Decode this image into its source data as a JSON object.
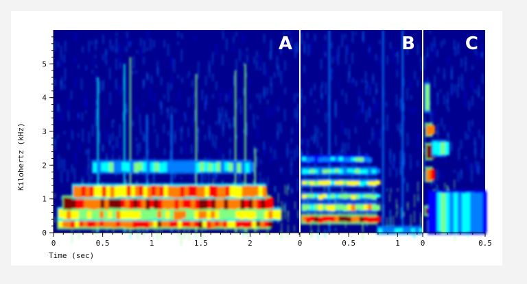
{
  "chart_data": {
    "type": "heatmap",
    "ylabel": "Kilohertz (kHz)",
    "xlabel": "Time (sec)",
    "ylim": [
      0,
      6
    ],
    "y_ticks": [
      "0",
      "1",
      "2",
      "3",
      "4",
      "5"
    ],
    "colormap": [
      "#00007f",
      "#0000ff",
      "#0080ff",
      "#00ffff",
      "#80ff80",
      "#ffff00",
      "#ff8000",
      "#ff0000",
      "#7f0000"
    ],
    "panels": [
      {
        "label": "A",
        "xlim": [
          0,
          2.5
        ],
        "x_ticks": [
          "0",
          "0.5",
          "1",
          "1.5",
          "2"
        ],
        "x_tick_values": [
          0,
          0.5,
          1,
          1.5,
          2
        ],
        "bands": [
          {
            "y0": 0.15,
            "y1": 0.4,
            "t0": 0.05,
            "t1": 2.2,
            "intensity": 0.8
          },
          {
            "y0": 0.4,
            "y1": 0.7,
            "t0": 0.05,
            "t1": 2.3,
            "intensity": 0.6
          },
          {
            "y0": 0.7,
            "y1": 1.05,
            "t0": 0.1,
            "t1": 2.2,
            "intensity": 0.85
          },
          {
            "y0": 1.05,
            "y1": 1.4,
            "t0": 0.2,
            "t1": 2.15,
            "intensity": 0.75
          },
          {
            "y0": 1.8,
            "y1": 2.1,
            "t0": 0.4,
            "t1": 2.0,
            "intensity": 0.35
          }
        ],
        "streaks": [
          {
            "t": 0.78,
            "y1": 5.2,
            "intensity": 0.5
          },
          {
            "t": 0.72,
            "y1": 5.0,
            "intensity": 0.4
          },
          {
            "t": 1.45,
            "y1": 4.7,
            "intensity": 0.45
          },
          {
            "t": 1.85,
            "y1": 4.8,
            "intensity": 0.5
          },
          {
            "t": 1.95,
            "y1": 5.0,
            "intensity": 0.55
          },
          {
            "t": 2.05,
            "y1": 2.5,
            "intensity": 0.5
          },
          {
            "t": 0.45,
            "y1": 4.6,
            "intensity": 0.35
          },
          {
            "t": 0.95,
            "y1": 3.5,
            "intensity": 0.3
          },
          {
            "t": 1.2,
            "y1": 3.5,
            "intensity": 0.3
          }
        ]
      },
      {
        "label": "B",
        "xlim": [
          0,
          1.25
        ],
        "x_ticks": [
          "0",
          "0.5",
          "1"
        ],
        "x_tick_values": [
          0,
          0.5,
          1
        ],
        "bands": [
          {
            "y0": 0.3,
            "y1": 0.5,
            "t0": 0.02,
            "t1": 0.78,
            "intensity": 0.9
          },
          {
            "y0": 0.65,
            "y1": 0.85,
            "t0": 0.02,
            "t1": 0.78,
            "intensity": 0.55
          },
          {
            "y0": 1.0,
            "y1": 1.15,
            "t0": 0.02,
            "t1": 0.78,
            "intensity": 0.5
          },
          {
            "y0": 1.4,
            "y1": 1.55,
            "t0": 0.02,
            "t1": 0.78,
            "intensity": 0.55
          },
          {
            "y0": 1.75,
            "y1": 1.9,
            "t0": 0.02,
            "t1": 0.78,
            "intensity": 0.4
          },
          {
            "y0": 2.1,
            "y1": 2.25,
            "t0": 0.02,
            "t1": 0.7,
            "intensity": 0.3
          },
          {
            "y0": 0.0,
            "y1": 0.15,
            "t0": 0.8,
            "t1": 1.25,
            "intensity": 0.35
          }
        ],
        "streaks": [
          {
            "t": 0.3,
            "y1": 6.0,
            "intensity": 0.3
          },
          {
            "t": 0.85,
            "y1": 6.0,
            "intensity": 0.25
          },
          {
            "t": 1.05,
            "y1": 6.0,
            "intensity": 0.3
          }
        ]
      },
      {
        "label": "C",
        "xlim": [
          0,
          0.5
        ],
        "x_ticks": [
          "0",
          "0.5"
        ],
        "x_tick_values": [
          0,
          0.5
        ],
        "bands": [
          {
            "y0": 0.55,
            "y1": 0.75,
            "t0": 0.02,
            "t1": 0.05,
            "intensity": 0.85
          },
          {
            "y0": 1.55,
            "y1": 1.9,
            "t0": 0.03,
            "t1": 0.07,
            "intensity": 0.85
          },
          {
            "y0": 2.2,
            "y1": 2.6,
            "t0": 0.03,
            "t1": 0.07,
            "intensity": 0.9
          },
          {
            "y0": 2.9,
            "y1": 3.2,
            "t0": 0.03,
            "t1": 0.07,
            "intensity": 0.8
          },
          {
            "y0": 3.6,
            "y1": 4.4,
            "t0": 0.02,
            "t1": 0.05,
            "intensity": 0.5
          },
          {
            "y0": 2.3,
            "y1": 2.7,
            "t0": 0.08,
            "t1": 0.18,
            "intensity": 0.4
          },
          {
            "y0": 0.0,
            "y1": 1.2,
            "t0": 0.05,
            "t1": 0.5,
            "intensity": 0.3
          }
        ],
        "streaks": []
      }
    ]
  }
}
